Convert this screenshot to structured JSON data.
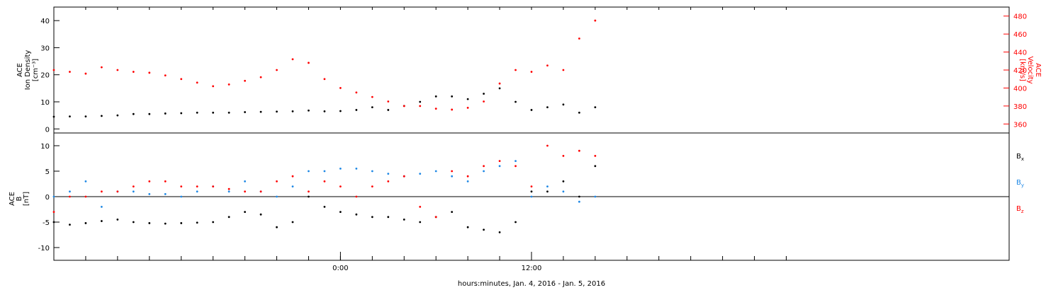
{
  "chart_data": [
    {
      "type": "scatter",
      "panel": "top",
      "ylabel_left": [
        "ACE",
        "Ion Density",
        "[cm⁻³]"
      ],
      "ylabel_right": [
        "ACE",
        "Velocity",
        "[km/s]"
      ],
      "ylim_left": [
        -1.5,
        45
      ],
      "ylim_right": [
        350,
        490
      ],
      "yticks_left": [
        0,
        10,
        20,
        30,
        40
      ],
      "yticks_right": [
        360,
        380,
        400,
        420,
        440,
        460,
        480
      ],
      "series": [
        {
          "axis": "left",
          "color": "#000000",
          "x": [
            -18,
            -17,
            -16,
            -15,
            -14,
            -13,
            -12,
            -11,
            -10,
            -9,
            -8,
            -7,
            -6,
            -5,
            -4,
            -3,
            -2,
            -1,
            0,
            1,
            2,
            3,
            4,
            5,
            6,
            7,
            8,
            9,
            10,
            11,
            12,
            13,
            14,
            15,
            16
          ],
          "y": [
            4.5,
            4.6,
            4.6,
            4.8,
            5.0,
            5.5,
            5.5,
            5.7,
            5.8,
            6.0,
            6.0,
            6.0,
            6.2,
            6.3,
            6.4,
            6.5,
            6.8,
            6.5,
            6.6,
            7.0,
            8.0,
            7.0,
            8.5,
            10,
            12,
            12,
            11,
            13,
            15,
            10,
            7,
            8,
            9,
            6,
            8
          ]
        },
        {
          "axis": "right",
          "color": "#ff0000",
          "x": [
            -18,
            -17,
            -16,
            -15,
            -14,
            -13,
            -12,
            -11,
            -10,
            -9,
            -8,
            -7,
            -6,
            -5,
            -4,
            -3,
            -2,
            -1,
            0,
            1,
            2,
            3,
            4,
            5,
            6,
            7,
            8,
            9,
            10,
            11,
            12,
            13,
            14,
            15,
            16
          ],
          "y": [
            420,
            418,
            416,
            423,
            420,
            418,
            417,
            414,
            410,
            406,
            402,
            404,
            408,
            412,
            420,
            432,
            428,
            410,
            400,
            395,
            390,
            385,
            380,
            380,
            377,
            376,
            378,
            385,
            405,
            420,
            418,
            425,
            420,
            455,
            475
          ]
        }
      ]
    },
    {
      "type": "scatter",
      "panel": "bottom",
      "ylabel": [
        "ACE",
        "B",
        "[nT]"
      ],
      "ylim": [
        -12.5,
        12.5
      ],
      "yticks": [
        -10,
        -5,
        0,
        5,
        10
      ],
      "legend": {
        "placement": "right",
        "entries": [
          "B",
          "B",
          "B"
        ],
        "subscripts": [
          "x",
          "y",
          "z"
        ]
      },
      "series": [
        {
          "name_parts": [
            "B",
            "x"
          ],
          "color": "#000000",
          "x": [
            -18,
            -17,
            -16,
            -15,
            -14,
            -13,
            -12,
            -11,
            -10,
            -9,
            -8,
            -7,
            -6,
            -5,
            -4,
            -3,
            -2,
            -1,
            0,
            1,
            2,
            3,
            4,
            5,
            6,
            7,
            8,
            9,
            10,
            11,
            12,
            13,
            14,
            15,
            16
          ],
          "y": [
            -5,
            -5.5,
            -5.2,
            -4.8,
            -4.5,
            -5,
            -5.2,
            -5.3,
            -5.2,
            -5.1,
            -5,
            -4,
            -3,
            -3.5,
            -6,
            -5,
            0,
            -2,
            -3,
            -3.5,
            -4,
            -4,
            -4.5,
            -5,
            -4,
            -3,
            -6,
            -6.5,
            -7,
            -5,
            1,
            1,
            3,
            0,
            6
          ]
        },
        {
          "name_parts": [
            "B",
            "y"
          ],
          "color": "#1e88e5",
          "x": [
            -18,
            -17,
            -16,
            -15,
            -14,
            -13,
            -12,
            -11,
            -10,
            -9,
            -8,
            -7,
            -6,
            -5,
            -4,
            -3,
            -2,
            -1,
            0,
            1,
            2,
            3,
            4,
            5,
            6,
            7,
            8,
            9,
            10,
            11,
            12,
            13,
            14,
            15,
            16
          ],
          "y": [
            0,
            1,
            3,
            -2,
            1,
            1,
            0.5,
            0.5,
            0,
            1,
            2,
            1,
            3,
            1,
            0,
            2,
            5,
            5,
            5.5,
            5.5,
            5,
            4.5,
            4,
            4.5,
            5,
            4,
            3,
            5,
            6,
            7,
            0,
            2,
            1,
            -1,
            0
          ]
        },
        {
          "name_parts": [
            "B",
            "z"
          ],
          "color": "#ff0000",
          "x": [
            -18,
            -17,
            -16,
            -15,
            -14,
            -13,
            -12,
            -11,
            -10,
            -9,
            -8,
            -7,
            -6,
            -5,
            -4,
            -3,
            -2,
            -1,
            0,
            1,
            2,
            3,
            4,
            5,
            6,
            7,
            8,
            9,
            10,
            11,
            12,
            13,
            14,
            15,
            16
          ],
          "y": [
            -3,
            0,
            0,
            1,
            1,
            2,
            3,
            3,
            2,
            2,
            2,
            1.5,
            1,
            1,
            3,
            4,
            1,
            3,
            2,
            0,
            2,
            3,
            4,
            -2,
            -4,
            5,
            4,
            6,
            7,
            6,
            2,
            10,
            8,
            9,
            8
          ]
        }
      ]
    }
  ],
  "xaxis": {
    "tick_labels": [
      {
        "hours": 0,
        "label": "0:00"
      },
      {
        "hours": 12,
        "label": "12:00"
      }
    ],
    "minor_tick_hours": [
      -18,
      -16,
      -14,
      -12,
      -10,
      -8,
      -6,
      -4,
      -2,
      0,
      2,
      4,
      6,
      8,
      10,
      12,
      14,
      16,
      18,
      20,
      22,
      24,
      26,
      28
    ],
    "xlim_hours": [
      -18,
      42
    ],
    "label": "hours:minutes, Jan.  4, 2016 - Jan.  5, 2016"
  }
}
